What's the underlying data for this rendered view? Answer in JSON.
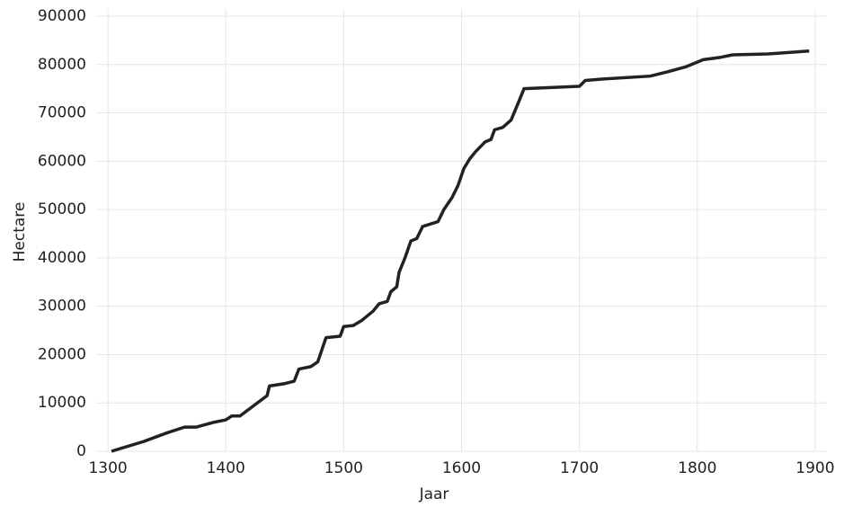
{
  "chart_data": {
    "type": "line",
    "x_label": "Jaar",
    "y_label": "Hectare",
    "x": [
      1303,
      1330,
      1350,
      1365,
      1375,
      1390,
      1400,
      1405,
      1412,
      1435,
      1437,
      1450,
      1458,
      1462,
      1472,
      1478,
      1485,
      1497,
      1500,
      1508,
      1515,
      1525,
      1530,
      1537,
      1540,
      1545,
      1547,
      1552,
      1557,
      1562,
      1567,
      1580,
      1585,
      1592,
      1597,
      1602,
      1607,
      1612,
      1620,
      1625,
      1628,
      1635,
      1642,
      1648,
      1653,
      1700,
      1705,
      1720,
      1760,
      1775,
      1790,
      1805,
      1820,
      1830,
      1860,
      1895
    ],
    "series": [
      {
        "name": "Hectare",
        "color": "#222222",
        "values": [
          0,
          2000,
          3800,
          5000,
          5000,
          6000,
          6500,
          7300,
          7300,
          11500,
          13500,
          14000,
          14500,
          17000,
          17500,
          18500,
          23500,
          23800,
          25800,
          26000,
          27000,
          29000,
          30500,
          31000,
          33000,
          34000,
          37000,
          40000,
          43500,
          44000,
          46500,
          47500,
          50000,
          52500,
          55000,
          58500,
          60500,
          62000,
          64000,
          64500,
          66500,
          67000,
          68500,
          72000,
          75000,
          75500,
          76700,
          77000,
          77600,
          78500,
          79500,
          81000,
          81500,
          82000,
          82200,
          82800
        ]
      }
    ],
    "xlim": [
      1290,
      1910
    ],
    "xticks": [
      1300,
      1400,
      1500,
      1600,
      1700,
      1800,
      1900
    ],
    "ylim": [
      0,
      90000
    ],
    "yticks": [
      0,
      10000,
      20000,
      30000,
      40000,
      50000,
      60000,
      70000,
      80000,
      90000
    ],
    "grid": true
  }
}
